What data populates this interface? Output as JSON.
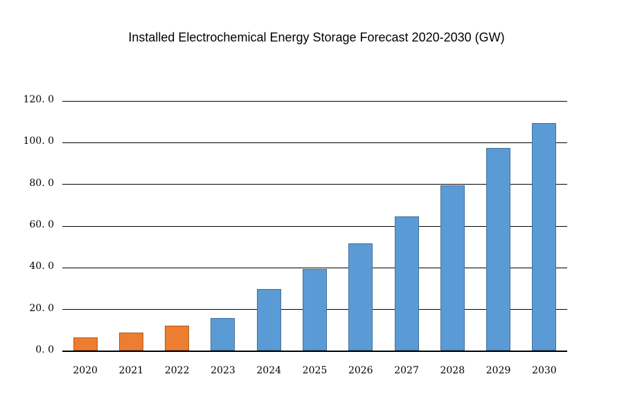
{
  "title": "Installed Electrochemical Energy Storage Forecast 2020-2030 (GW)",
  "colors": {
    "background": "#ffffff",
    "text": "#000000",
    "gridline": "#000000",
    "axis_line": "#000000",
    "orange_fill": "#ED7D31",
    "orange_border": "#AE5A21",
    "blue_fill": "#5B9BD5",
    "blue_border": "#41719C"
  },
  "chart_data": {
    "type": "bar",
    "title": "Installed Electrochemical Energy Storage Forecast 2020-2030 (GW)",
    "xlabel": "",
    "ylabel": "",
    "categories": [
      "2020",
      "2021",
      "2022",
      "2023",
      "2024",
      "2025",
      "2026",
      "2027",
      "2028",
      "2029",
      "2030"
    ],
    "values": [
      6.5,
      9.1,
      12.1,
      16.0,
      29.8,
      39.5,
      51.8,
      64.5,
      79.5,
      97.5,
      109.3
    ],
    "bar_fill_colors": [
      "#ED7D31",
      "#ED7D31",
      "#ED7D31",
      "#5B9BD5",
      "#5B9BD5",
      "#5B9BD5",
      "#5B9BD5",
      "#5B9BD5",
      "#5B9BD5",
      "#5B9BD5",
      "#5B9BD5"
    ],
    "bar_border_colors": [
      "#AE5A21",
      "#AE5A21",
      "#AE5A21",
      "#41719C",
      "#41719C",
      "#41719C",
      "#41719C",
      "#41719C",
      "#41719C",
      "#41719C",
      "#41719C"
    ],
    "ylim": [
      0,
      120
    ],
    "ytick_step": 20,
    "ytick_labels": [
      "0. 0",
      "20. 0",
      "40. 0",
      "60. 0",
      "80. 0",
      "100. 0",
      "120. 0"
    ],
    "grid": "horizontal",
    "legend_position": "none"
  }
}
